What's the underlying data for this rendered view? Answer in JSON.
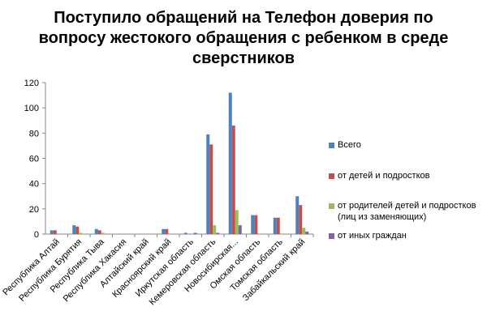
{
  "chart_data": {
    "type": "bar",
    "title": "Поступило обращений на Телефон доверия по вопросу жестокого обращения с ребенком в среде сверстников",
    "categories": [
      "Республика Алтай",
      "Республика Бурятия",
      "Республика Тыва",
      "Республика Хакасия",
      "Алтайский край",
      "Красноярский край",
      "Иркутская область",
      "Кемеровская область",
      "Новосибирская...",
      "Омская область",
      "Томская область",
      "Забайкальский край"
    ],
    "series": [
      {
        "name": "Всего",
        "color": "#4F81BD",
        "values": [
          3,
          7,
          4,
          0,
          0,
          4,
          1,
          79,
          112,
          15,
          13,
          30
        ]
      },
      {
        "name": "от детей и подростков",
        "color": "#C0504D",
        "values": [
          3,
          6,
          3,
          0,
          0,
          4,
          0,
          71,
          86,
          15,
          13,
          23
        ]
      },
      {
        "name": "от  родителей детей и подростков (лиц из заменяющих)",
        "color": "#9BBB59",
        "values": [
          0,
          1,
          1,
          0,
          0,
          0,
          0,
          7,
          19,
          0,
          0,
          5
        ]
      },
      {
        "name": "от  иных граждан",
        "color": "#8064A2",
        "values": [
          0,
          0,
          0,
          0,
          0,
          0,
          1,
          1,
          7,
          0,
          0,
          2
        ]
      }
    ],
    "ylim": [
      0,
      120
    ],
    "yticks": [
      0,
      20,
      40,
      60,
      80,
      100,
      120
    ],
    "grid": false,
    "legend_position": "right"
  }
}
